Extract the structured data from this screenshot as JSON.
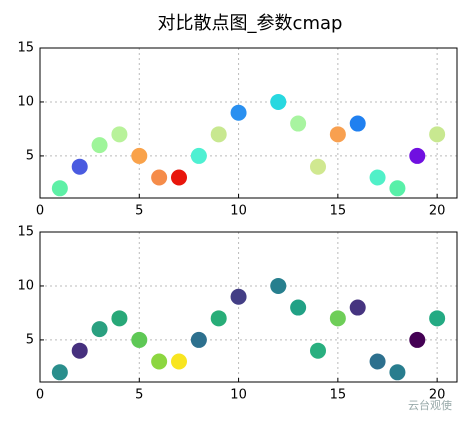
{
  "title": "对比散点图_参数cmap",
  "watermark": "云台观使",
  "chart_data": [
    {
      "type": "scatter",
      "x": [
        1,
        2,
        3,
        4,
        5,
        6,
        7,
        8,
        9,
        10,
        12,
        13,
        14,
        15,
        16,
        17,
        18,
        19,
        20
      ],
      "values": [
        2,
        4,
        6,
        7,
        5,
        3,
        3,
        5,
        7,
        9,
        10,
        8,
        4,
        7,
        8,
        3,
        2,
        5,
        7
      ],
      "colors": [
        "#5ef0a6",
        "#4a5be0",
        "#9ef59a",
        "#b8f29a",
        "#f9a24a",
        "#f58c4a",
        "#e8160c",
        "#4ef0d2",
        "#c8e890",
        "#2a90f0",
        "#28d8e0",
        "#a8f4a0",
        "#d0e890",
        "#f8a050",
        "#2080f0",
        "#50f0c8",
        "#58f0a8",
        "#7010e0",
        "#c8e890"
      ],
      "xlim": [
        0,
        21
      ],
      "xticks": [
        0,
        5,
        10,
        15,
        20
      ],
      "ylim": [
        1.1,
        15
      ],
      "yticks": [
        5,
        10,
        15
      ],
      "grid": true
    },
    {
      "type": "scatter",
      "x": [
        1,
        2,
        3,
        4,
        5,
        6,
        7,
        8,
        9,
        10,
        12,
        13,
        14,
        15,
        16,
        17,
        18,
        19,
        20
      ],
      "values": [
        2,
        4,
        6,
        7,
        5,
        3,
        3,
        5,
        7,
        9,
        10,
        8,
        4,
        7,
        8,
        3,
        2,
        5,
        7
      ],
      "colors": [
        "#2a8e8c",
        "#46307e",
        "#2aa080",
        "#28a878",
        "#5ec855",
        "#8cd640",
        "#f8e520",
        "#2d708e",
        "#28ad78",
        "#433e85",
        "#277f8e",
        "#21a185",
        "#29af7f",
        "#6ece58",
        "#463480",
        "#2d708e",
        "#287d8e",
        "#440154",
        "#24aa83"
      ],
      "xlim": [
        0,
        21
      ],
      "xticks": [
        0,
        5,
        10,
        15,
        20
      ],
      "ylim": [
        1.1,
        15
      ],
      "yticks": [
        5,
        10,
        15
      ],
      "grid": true
    }
  ]
}
